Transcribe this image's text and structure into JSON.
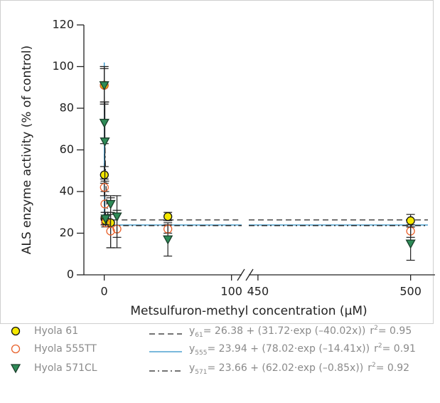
{
  "chart_data": {
    "type": "scatter",
    "y_label": "ALS enzyme activity (% of control)",
    "x_label": "Metsulfuron-methyl concentration (µM)",
    "ylim": [
      0,
      120
    ],
    "yticks": [
      0,
      20,
      40,
      60,
      80,
      100,
      120
    ],
    "xlim": [
      -16,
      108
    ],
    "xticks": [
      0,
      100
    ],
    "x2lim": [
      447,
      508
    ],
    "x2ticks": [
      450,
      500
    ],
    "series": [
      {
        "name": "Hyola 61",
        "color": "#f5e800",
        "edge": "#111111",
        "marker": "circle",
        "x": [
          0,
          0.1,
          0.5,
          1,
          5,
          50,
          500
        ],
        "values": [
          91,
          48,
          27,
          26,
          25,
          28,
          26
        ],
        "errors": [
          9,
          4,
          3,
          2,
          12,
          2,
          3
        ],
        "fit": {
          "a": 26.38,
          "b": 31.72,
          "k": -40.02
        },
        "line_style": "dashed",
        "line_color": "#222222",
        "equation": {
          "y": "y",
          "sub": "61",
          "body": "= 26.38 + (31.72·exp (–40.02x))",
          "r": "r",
          "sup": "2",
          "r_value": "= 0.95"
        }
      },
      {
        "name": "Hyola 555TT",
        "color": "none",
        "edge": "#e8622c",
        "marker": "circle",
        "x": [
          0,
          0.1,
          0.5,
          1,
          5,
          10,
          50,
          500
        ],
        "values": [
          91,
          42,
          34,
          25,
          21,
          22,
          22,
          21
        ],
        "errors": [
          8,
          4,
          6,
          2,
          8,
          9,
          2,
          3
        ],
        "fit": {
          "a": 23.94,
          "b": 78.02,
          "k": -14.41
        },
        "line_style": "solid",
        "line_color": "#2a8fc8",
        "equation": {
          "y": "y",
          "sub": "555",
          "body": "= 23.94 + (78.02·exp (–14.41x))",
          "r": "r",
          "sup": "2",
          "r_value": "= 0.91"
        }
      },
      {
        "name": "Hyola 571CL",
        "color": "#2e8b57",
        "edge": "#1a3d2a",
        "marker": "triangle",
        "x": [
          0,
          0.1,
          0.5,
          1,
          5,
          10,
          50,
          500
        ],
        "values": [
          91,
          73,
          64,
          27,
          34,
          28,
          17,
          15
        ],
        "errors": [
          9,
          10,
          19,
          3,
          4,
          10,
          8,
          8
        ],
        "fit": {
          "a": 23.66,
          "b": 62.02,
          "k": -0.85
        },
        "line_style": "dashdot",
        "line_color": "#222222",
        "equation": {
          "y": "y",
          "sub": "571",
          "body": "= 23.66 + (62.02·exp (–0.85x))",
          "r": "r",
          "sup": "2",
          "r_value": "= 0.92"
        }
      }
    ]
  }
}
